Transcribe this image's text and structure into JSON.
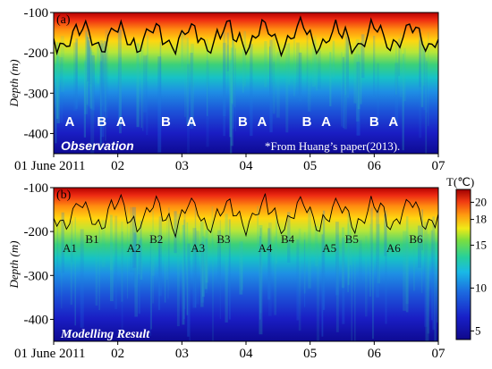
{
  "figure": {
    "y_axis_label": "Depth (m)",
    "date_start_label": "01 June 2011",
    "colorbar_title": "T(℃)",
    "colorbar_ticks": [
      "20",
      "18",
      "15",
      "10",
      "5"
    ]
  },
  "chart_data": [
    {
      "panel": "(a)",
      "type": "heatmap",
      "overlay_text": "Observation",
      "credit_text": "*From Huang’s paper(2013).",
      "x_ticks": [
        "01 June 2011",
        "02",
        "03",
        "04",
        "05",
        "06",
        "07"
      ],
      "x_range": [
        1,
        7
      ],
      "y_ticks": [
        -100,
        -200,
        -300,
        -400
      ],
      "ylim": [
        -450,
        -100
      ],
      "ylabel": "Depth (m)",
      "event_labels": [
        {
          "label": "A",
          "day": 1.25
        },
        {
          "label": "B",
          "day": 1.75
        },
        {
          "label": "A",
          "day": 2.05
        },
        {
          "label": "B",
          "day": 2.75
        },
        {
          "label": "A",
          "day": 3.15
        },
        {
          "label": "B",
          "day": 3.95
        },
        {
          "label": "A",
          "day": 4.25
        },
        {
          "label": "B",
          "day": 4.95
        },
        {
          "label": "A",
          "day": 5.25
        },
        {
          "label": "B",
          "day": 6.0
        },
        {
          "label": "A",
          "day": 6.3
        }
      ],
      "color_range": [
        5,
        21
      ]
    },
    {
      "panel": "(b)",
      "type": "heatmap",
      "overlay_text": "Modelling Result",
      "x_ticks": [
        "01 June 2011",
        "02",
        "03",
        "04",
        "05",
        "06",
        "07"
      ],
      "x_range": [
        1,
        7
      ],
      "y_ticks": [
        -100,
        -200,
        -300,
        -400
      ],
      "ylim": [
        -450,
        -100
      ],
      "ylabel": "Depth (m)",
      "event_labels": [
        {
          "label": "A1",
          "day": 1.25
        },
        {
          "label": "B1",
          "day": 1.6
        },
        {
          "label": "A2",
          "day": 2.25
        },
        {
          "label": "B2",
          "day": 2.6
        },
        {
          "label": "A3",
          "day": 3.25
        },
        {
          "label": "B3",
          "day": 3.65
        },
        {
          "label": "A4",
          "day": 4.3
        },
        {
          "label": "B4",
          "day": 4.65
        },
        {
          "label": "A5",
          "day": 5.3
        },
        {
          "label": "B5",
          "day": 5.65
        },
        {
          "label": "A6",
          "day": 6.3
        },
        {
          "label": "B6",
          "day": 6.65
        }
      ],
      "color_range": [
        5,
        21
      ]
    }
  ]
}
